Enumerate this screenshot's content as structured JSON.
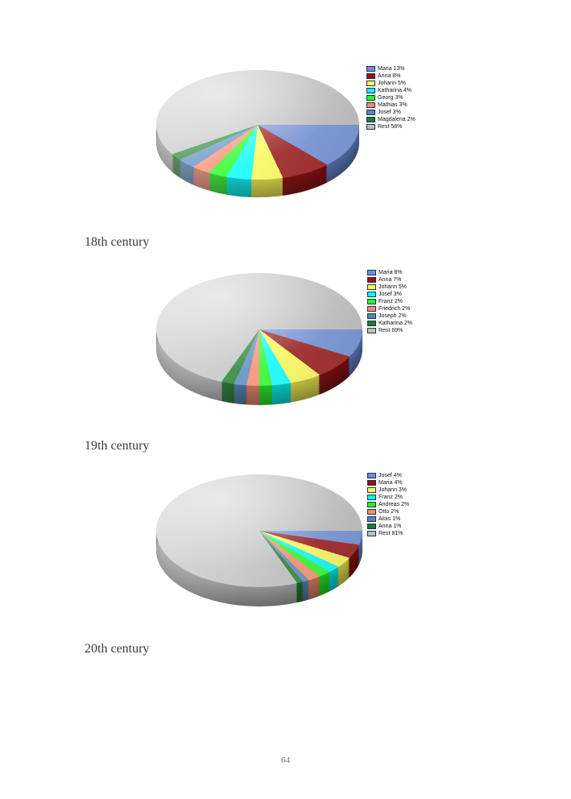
{
  "page": {
    "number": "64"
  },
  "chart_data": [
    {
      "type": "pie",
      "style": "3d",
      "caption": "18th century",
      "legend_position": "right",
      "rest_color": "#BFBFBF",
      "slices": [
        {
          "name": "Maria",
          "pct": 13,
          "color": "#6D8EDB"
        },
        {
          "name": "Anna",
          "pct": 8,
          "color": "#990F0F"
        },
        {
          "name": "Johann",
          "pct": 5,
          "color": "#FFFF54"
        },
        {
          "name": "Katharina",
          "pct": 4,
          "color": "#00FFFF"
        },
        {
          "name": "Georg",
          "pct": 3,
          "color": "#21FF21"
        },
        {
          "name": "Mathias",
          "pct": 3,
          "color": "#FA8A6B"
        },
        {
          "name": "Josef",
          "pct": 3,
          "color": "#5587BE"
        },
        {
          "name": "Magdalena",
          "pct": 2,
          "color": "#1C7C28"
        },
        {
          "name": "Rest",
          "pct": 58,
          "color": "#BFBFBF"
        }
      ]
    },
    {
      "type": "pie",
      "style": "3d",
      "caption": "19th century",
      "legend_position": "right",
      "rest_color": "#BFBFBF",
      "slices": [
        {
          "name": "Maria",
          "pct": 8,
          "color": "#6D8EDB"
        },
        {
          "name": "Anna",
          "pct": 7,
          "color": "#990F0F"
        },
        {
          "name": "Johann",
          "pct": 5,
          "color": "#FFFF54"
        },
        {
          "name": "Josef",
          "pct": 3,
          "color": "#00FFFF"
        },
        {
          "name": "Franz",
          "pct": 2,
          "color": "#21FF21"
        },
        {
          "name": "Friedrich",
          "pct": 2,
          "color": "#FA8A6B"
        },
        {
          "name": "Joseph",
          "pct": 2,
          "color": "#5587BE"
        },
        {
          "name": "Katharina",
          "pct": 2,
          "color": "#1C7C28"
        },
        {
          "name": "Rest",
          "pct": 69,
          "color": "#BFBFBF"
        }
      ]
    },
    {
      "type": "pie",
      "style": "3d",
      "caption": "20th century",
      "legend_position": "right",
      "rest_color": "#BFBFBF",
      "slices": [
        {
          "name": "Josef",
          "pct": 4,
          "color": "#6D8EDB"
        },
        {
          "name": "Maria",
          "pct": 4,
          "color": "#990F0F"
        },
        {
          "name": "Johann",
          "pct": 3,
          "color": "#FFFF54"
        },
        {
          "name": "Franz",
          "pct": 2,
          "color": "#00FFFF"
        },
        {
          "name": "Andreas",
          "pct": 2,
          "color": "#21FF21"
        },
        {
          "name": "Otto",
          "pct": 2,
          "color": "#FA8A6B"
        },
        {
          "name": "Alois",
          "pct": 1,
          "color": "#5587BE"
        },
        {
          "name": "Anna",
          "pct": 1,
          "color": "#1C7C28"
        },
        {
          "name": "Rest",
          "pct": 81,
          "color": "#BFBFBF"
        }
      ]
    }
  ]
}
